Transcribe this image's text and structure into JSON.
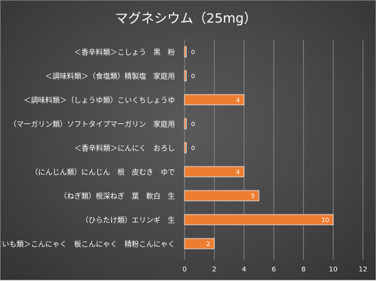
{
  "chart_data": {
    "type": "bar",
    "orientation": "horizontal",
    "title": "マグネシウム（25mg）",
    "categories": [
      "＜香辛料類＞こしょう　黒　粉",
      "＜調味料類＞（食塩類）精製塩　家庭用",
      "＜調味料類＞（しょうゆ類）こいくちしょうゆ",
      "（マーガリン類）ソフトタイプマーガリン　家庭用",
      "＜香辛料類＞にんにく　おろし",
      "（にんじん類）にんじん　根　皮むき　ゆで",
      "（ねぎ類）根深ねぎ　葉　軟白　生",
      "（ひらたけ類）エリンギ　生",
      "＜いも類＞こんにゃく　板こんにゃく　精粉こんにゃく"
    ],
    "series": [
      {
        "values": [
          0,
          0,
          4,
          0,
          0,
          4,
          5,
          10,
          2
        ]
      }
    ],
    "xlim": [
      0,
      12
    ],
    "xticks": [
      0,
      2,
      4,
      6,
      8,
      10,
      12
    ],
    "grid": true,
    "legend": "none",
    "colors": {
      "bar": "#ED7D31",
      "bar_edge": "#ffffff",
      "grid": "#8a8a8a",
      "text": "#ffffff"
    }
  }
}
